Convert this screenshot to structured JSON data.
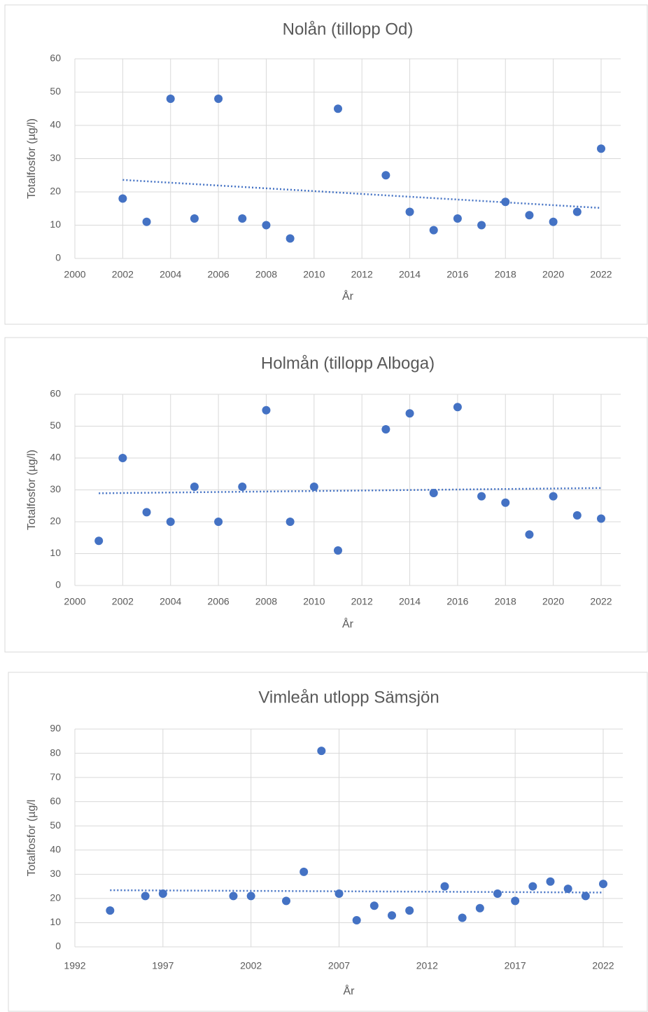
{
  "chart_data": [
    {
      "type": "scatter",
      "title": "Nolån (tillopp Od)",
      "x_label": "År",
      "y_label": "Totalfosfor (µg/l)",
      "color": "#4472c4",
      "grid": true,
      "trendline": "linear",
      "x": [
        2002,
        2003,
        2004,
        2005,
        2006,
        2007,
        2008,
        2009,
        2011,
        2013,
        2014,
        2015,
        2016,
        2017,
        2018,
        2019,
        2020,
        2021,
        2022
      ],
      "values": [
        18,
        11,
        48,
        12,
        48,
        12,
        10,
        6,
        45,
        25,
        14,
        8.5,
        12,
        10,
        17,
        13,
        11,
        14,
        33
      ],
      "xlim": [
        2000,
        2022
      ],
      "xticks": [
        2000,
        2002,
        2004,
        2006,
        2008,
        2010,
        2012,
        2014,
        2016,
        2018,
        2020,
        2022
      ],
      "ylim": [
        0,
        60
      ],
      "yticks": [
        0,
        10,
        20,
        30,
        40,
        50,
        60
      ]
    },
    {
      "type": "scatter",
      "title": "Holmån (tillopp Alboga)",
      "x_label": "År",
      "y_label": "Totalfosfor (µg/l)",
      "color": "#4472c4",
      "grid": true,
      "trendline": "linear",
      "x": [
        2001,
        2002,
        2003,
        2004,
        2005,
        2006,
        2007,
        2008,
        2009,
        2010,
        2011,
        2013,
        2014,
        2015,
        2016,
        2017,
        2018,
        2019,
        2020,
        2021,
        2022
      ],
      "values": [
        14,
        40,
        23,
        20,
        31,
        20,
        31,
        55,
        20,
        31,
        11,
        49,
        54,
        29,
        56,
        28,
        26,
        16,
        28,
        22,
        21
      ],
      "xlim": [
        2000,
        2022
      ],
      "xticks": [
        2000,
        2002,
        2004,
        2006,
        2008,
        2010,
        2012,
        2014,
        2016,
        2018,
        2020,
        2022
      ],
      "ylim": [
        0,
        60
      ],
      "yticks": [
        0,
        10,
        20,
        30,
        40,
        50,
        60
      ]
    },
    {
      "type": "scatter",
      "title": "Vimleån utlopp Sämsjön",
      "x_label": "År",
      "y_label": "Totalfosfor (µg/l",
      "color": "#4472c4",
      "grid": true,
      "trendline": "linear",
      "x": [
        1994,
        1996,
        1997,
        2001,
        2002,
        2004,
        2005,
        2006,
        2007,
        2008,
        2009,
        2010,
        2011,
        2013,
        2014,
        2015,
        2016,
        2017,
        2018,
        2019,
        2020,
        2021,
        2022
      ],
      "values": [
        15,
        21,
        22,
        21,
        21,
        19,
        31,
        81,
        22,
        11,
        17,
        13,
        15,
        25,
        12,
        16,
        22,
        19,
        25,
        27,
        24,
        21,
        26
      ],
      "xlim": [
        1992,
        2022
      ],
      "xticks": [
        1992,
        1997,
        2002,
        2007,
        2012,
        2017,
        2022
      ],
      "ylim": [
        0,
        90
      ],
      "yticks": [
        0,
        10,
        20,
        30,
        40,
        50,
        60,
        70,
        80,
        90
      ]
    }
  ]
}
